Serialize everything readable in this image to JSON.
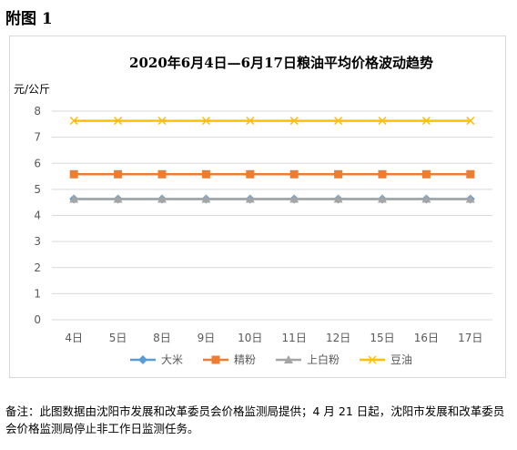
{
  "page": {
    "heading": "附图 1",
    "footnote": "备注：此图数据由沈阳市发展和改革委员会价格监测局提供；4 月 21 日起，沈阳市发展和改革委员会价格监测局停止非工作日监测任务。"
  },
  "chart_data": {
    "type": "line",
    "title": "2020年6月4日—6月17日粮油平均价格波动趋势",
    "ylabel": "元/公斤",
    "xlabel": "",
    "ylim": [
      0,
      8
    ],
    "yticks": [
      0,
      1,
      2,
      3,
      4,
      5,
      6,
      7,
      8
    ],
    "grid": true,
    "legend_position": "bottom",
    "categories": [
      "4日",
      "5日",
      "8日",
      "9日",
      "10日",
      "11日",
      "12日",
      "15日",
      "16日",
      "17日"
    ],
    "series": [
      {
        "name": "大米",
        "color": "#5b9bd5",
        "marker": "diamond",
        "values": [
          4.63,
          4.63,
          4.63,
          4.63,
          4.63,
          4.63,
          4.63,
          4.63,
          4.63,
          4.63
        ]
      },
      {
        "name": "精粉",
        "color": "#ed7d31",
        "marker": "square",
        "values": [
          5.58,
          5.58,
          5.58,
          5.58,
          5.58,
          5.58,
          5.58,
          5.58,
          5.58,
          5.58
        ]
      },
      {
        "name": "上白粉",
        "color": "#a5a5a5",
        "marker": "triangle",
        "values": [
          4.63,
          4.63,
          4.63,
          4.63,
          4.63,
          4.63,
          4.63,
          4.63,
          4.63,
          4.63
        ]
      },
      {
        "name": "豆油",
        "color": "#ffc000",
        "marker": "x",
        "values": [
          7.63,
          7.63,
          7.63,
          7.63,
          7.63,
          7.63,
          7.63,
          7.63,
          7.63,
          7.63
        ]
      }
    ]
  }
}
